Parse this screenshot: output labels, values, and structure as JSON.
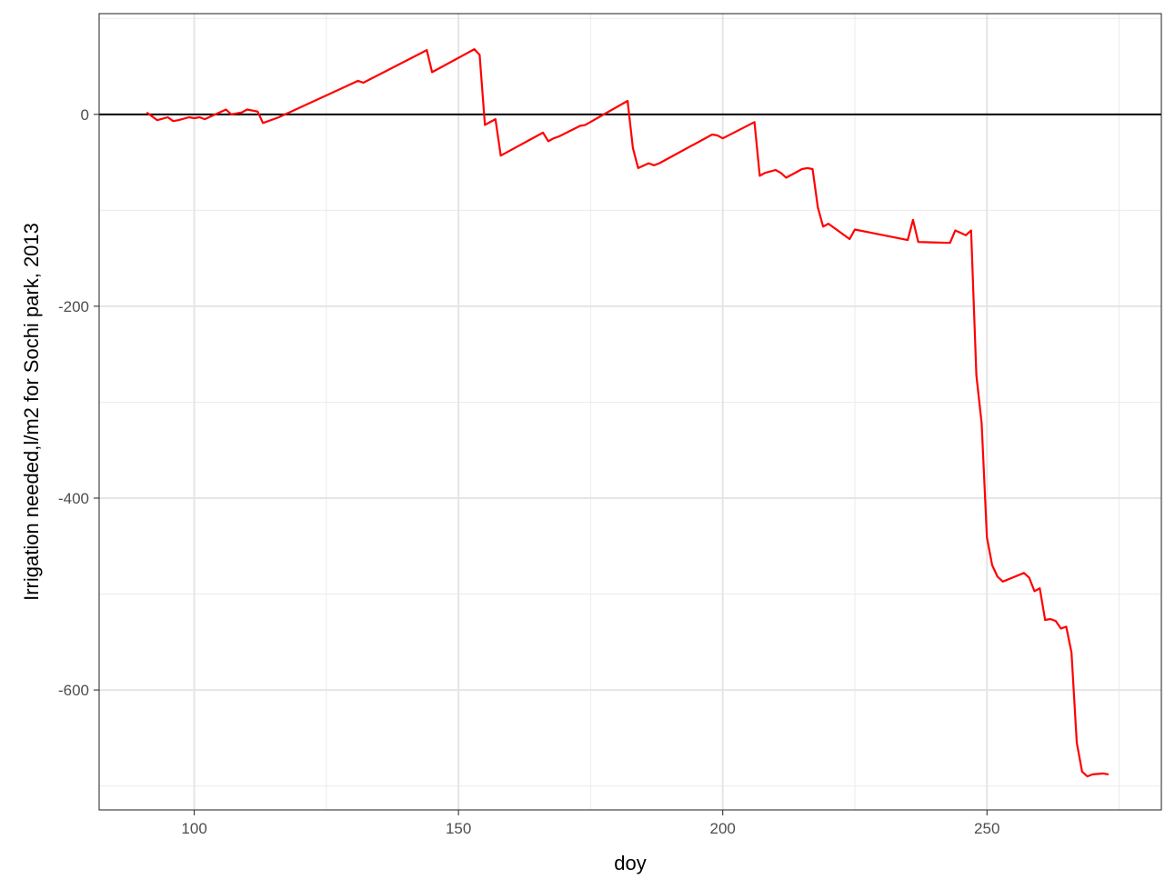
{
  "chart_data": {
    "type": "line",
    "title": "",
    "xlabel": "doy",
    "ylabel": "Irrigation needed,l/m2 for Sochi park, 2013",
    "xlim": [
      82,
      283
    ],
    "ylim": [
      -725,
      105
    ],
    "x_ticks": [
      100,
      150,
      200,
      250
    ],
    "x_tick_labels": [
      "100",
      "150",
      "200",
      "250"
    ],
    "y_ticks": [
      0,
      -200,
      -400,
      -600
    ],
    "y_tick_labels": [
      "0",
      "-200",
      "-400",
      "-600"
    ],
    "grid": true,
    "legend": "none",
    "reference_line": {
      "y": 0,
      "color": "#000000"
    },
    "series": [
      {
        "color": "#ff0000",
        "x": [
          91,
          93,
          95,
          96,
          97,
          99,
          100,
          101,
          102,
          106,
          107,
          109,
          110,
          112,
          113,
          115,
          116,
          131,
          132,
          144,
          145,
          153,
          154,
          155,
          157,
          158,
          166,
          167,
          168,
          169,
          173,
          174,
          182,
          183,
          184,
          186,
          187,
          188,
          198,
          199,
          200,
          206,
          207,
          208,
          210,
          211,
          212,
          215,
          216,
          217,
          218,
          219,
          220,
          224,
          225,
          235,
          236,
          237,
          243,
          244,
          246,
          247,
          248,
          249,
          250,
          251,
          252,
          253,
          257,
          258,
          259,
          260,
          261,
          262,
          263,
          264,
          265,
          266,
          267,
          268,
          269,
          270,
          272,
          273
        ],
        "y": [
          2,
          -6,
          -3,
          -7,
          -6,
          -3,
          -4,
          -3,
          -5,
          5,
          0,
          2,
          5,
          3,
          -9,
          -5,
          -3,
          35,
          33,
          67,
          44,
          68,
          62,
          -11,
          -5,
          -43,
          -19,
          -28,
          -25,
          -23,
          -12,
          -11,
          14,
          -35,
          -56,
          -51,
          -53,
          -51,
          -21,
          -22,
          -25,
          -8,
          -64,
          -61,
          -58,
          -61,
          -66,
          -57,
          -56,
          -57,
          -97,
          -117,
          -114,
          -130,
          -120,
          -131,
          -110,
          -133,
          -134,
          -121,
          -126,
          -121,
          -272,
          -322,
          -441,
          -470,
          -482,
          -487,
          -478,
          -483,
          -497,
          -494,
          -527,
          -526,
          -528,
          -536,
          -534,
          -561,
          -655,
          -685,
          -690,
          -688,
          -687,
          -688
        ]
      }
    ]
  }
}
